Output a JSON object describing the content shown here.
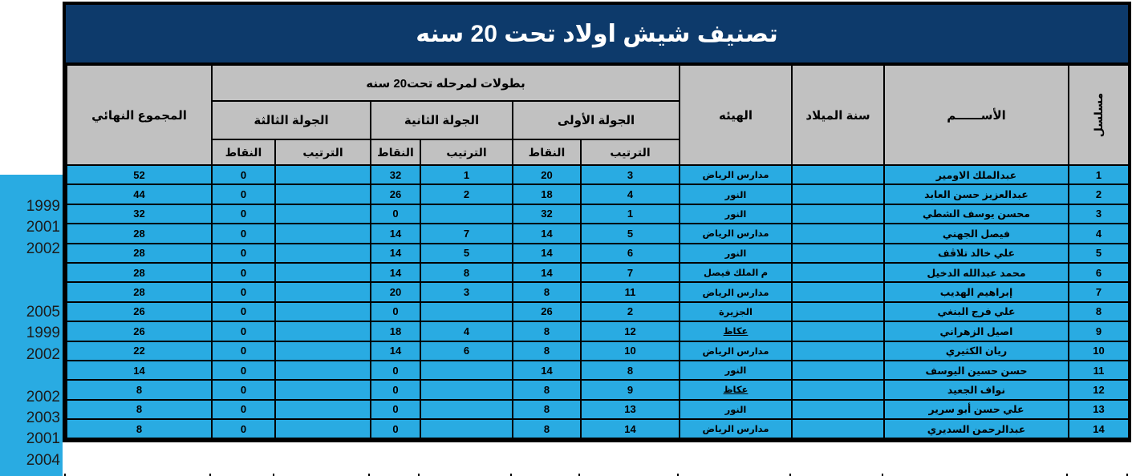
{
  "title": "تصنيف شيش اولاد تحت 20 سنه",
  "colors": {
    "title_bg": "#0D3A6B",
    "title_text": "#FFFFFF",
    "header_bg": "#C1C1C1",
    "row_bg": "#29ABE2",
    "border": "#000000"
  },
  "header": {
    "serial": "مسلسل",
    "name": "الأســــــم",
    "birth_year": "سنة الميلاد",
    "organization": "الهيئه",
    "championships_group": "بطولات لمرحله تحت20 سنه",
    "rounds": [
      {
        "label": "الجولة الأولى"
      },
      {
        "label": "الجولة الثانية"
      },
      {
        "label": "الجولة الثالثة"
      }
    ],
    "rank": "الترتيب",
    "points": "النقاط",
    "final_total": "المجموع النهائي"
  },
  "rows": [
    {
      "serial": "1",
      "name": "عبدالملك الاومير",
      "birth_year": "",
      "org": "مدارس الرياض",
      "org_underlined": false,
      "r1_rank": "3",
      "r1_pts": "20",
      "r2_rank": "1",
      "r2_pts": "32",
      "r3_rank": "",
      "r3_pts": "0",
      "total": "52"
    },
    {
      "serial": "2",
      "name": "عبدالعزيز حسن العابد",
      "birth_year": "",
      "org": "النور",
      "org_underlined": false,
      "r1_rank": "4",
      "r1_pts": "18",
      "r2_rank": "2",
      "r2_pts": "26",
      "r3_rank": "",
      "r3_pts": "0",
      "total": "44"
    },
    {
      "serial": "3",
      "name": "محسن يوسف الشطي",
      "birth_year": "",
      "org": "النور",
      "org_underlined": false,
      "r1_rank": "1",
      "r1_pts": "32",
      "r2_rank": "",
      "r2_pts": "0",
      "r3_rank": "",
      "r3_pts": "0",
      "total": "32"
    },
    {
      "serial": "4",
      "name": "فيصل الجهني",
      "birth_year": "",
      "org": "مدارس الرياض",
      "org_underlined": false,
      "r1_rank": "5",
      "r1_pts": "14",
      "r2_rank": "7",
      "r2_pts": "14",
      "r3_rank": "",
      "r3_pts": "0",
      "total": "28"
    },
    {
      "serial": "5",
      "name": "علي خالد تلاڤف",
      "birth_year": "",
      "org": "النور",
      "org_underlined": false,
      "r1_rank": "6",
      "r1_pts": "14",
      "r2_rank": "5",
      "r2_pts": "14",
      "r3_rank": "",
      "r3_pts": "0",
      "total": "28"
    },
    {
      "serial": "6",
      "name": "محمد عبدالله الدخيل",
      "birth_year": "",
      "org": "م الملك فيصل",
      "org_underlined": false,
      "r1_rank": "7",
      "r1_pts": "14",
      "r2_rank": "8",
      "r2_pts": "14",
      "r3_rank": "",
      "r3_pts": "0",
      "total": "28"
    },
    {
      "serial": "7",
      "name": "إبراهيم الهديب",
      "birth_year": "",
      "org": "مدارس الرياض",
      "org_underlined": false,
      "r1_rank": "11",
      "r1_pts": "8",
      "r2_rank": "3",
      "r2_pts": "20",
      "r3_rank": "",
      "r3_pts": "0",
      "total": "28"
    },
    {
      "serial": "8",
      "name": "علي فرج البنغي",
      "birth_year": "",
      "org": "الجزيرة",
      "org_underlined": false,
      "r1_rank": "2",
      "r1_pts": "26",
      "r2_rank": "",
      "r2_pts": "0",
      "r3_rank": "",
      "r3_pts": "0",
      "total": "26"
    },
    {
      "serial": "9",
      "name": "اصيل الزهراني",
      "birth_year": "",
      "org": "عكاظ",
      "org_underlined": true,
      "r1_rank": "12",
      "r1_pts": "8",
      "r2_rank": "4",
      "r2_pts": "18",
      "r3_rank": "",
      "r3_pts": "0",
      "total": "26"
    },
    {
      "serial": "10",
      "name": "ريان الكثيري",
      "birth_year": "",
      "org": "مدارس الرياض",
      "org_underlined": false,
      "r1_rank": "10",
      "r1_pts": "8",
      "r2_rank": "6",
      "r2_pts": "14",
      "r3_rank": "",
      "r3_pts": "0",
      "total": "22"
    },
    {
      "serial": "11",
      "name": "حسن حسين اليوسف",
      "birth_year": "",
      "org": "النور",
      "org_underlined": false,
      "r1_rank": "8",
      "r1_pts": "14",
      "r2_rank": "",
      "r2_pts": "0",
      "r3_rank": "",
      "r3_pts": "0",
      "total": "14"
    },
    {
      "serial": "12",
      "name": "نواف الجعيد",
      "birth_year": "",
      "org": "عكاظ",
      "org_underlined": true,
      "r1_rank": "9",
      "r1_pts": "8",
      "r2_rank": "",
      "r2_pts": "0",
      "r3_rank": "",
      "r3_pts": "0",
      "total": "8"
    },
    {
      "serial": "13",
      "name": "علي حسن أبو سرير",
      "birth_year": "",
      "org": "النور",
      "org_underlined": false,
      "r1_rank": "13",
      "r1_pts": "8",
      "r2_rank": "",
      "r2_pts": "0",
      "r3_rank": "",
      "r3_pts": "0",
      "total": "8"
    },
    {
      "serial": "14",
      "name": "عبدالرحمن السديري",
      "birth_year": "",
      "org": "مدارس الرياض",
      "org_underlined": false,
      "r1_rank": "14",
      "r1_pts": "8",
      "r2_rank": "",
      "r2_pts": "0",
      "r3_rank": "",
      "r3_pts": "0",
      "total": "8"
    }
  ],
  "left_margin_years": [
    "",
    "1999",
    "2001",
    "2002",
    "",
    "",
    "2005",
    "1999",
    "2002",
    "",
    "2002",
    "2003",
    "2001",
    "2004"
  ]
}
